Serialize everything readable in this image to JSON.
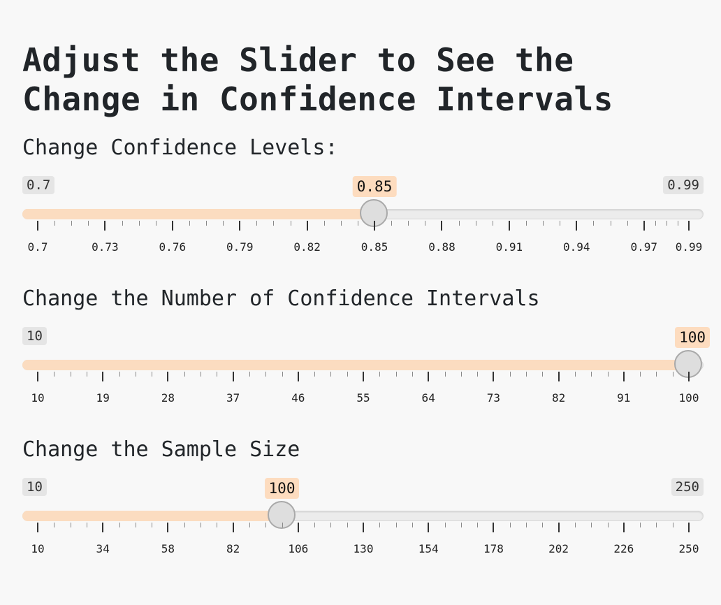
{
  "title": "Adjust the Slider to See the Change in Confidence Intervals",
  "sliders": [
    {
      "label": "Change Confidence Levels:",
      "min": 0.7,
      "max": 0.99,
      "value": 0.85,
      "min_label": "0.7",
      "max_label": "0.99",
      "value_label": "0.85",
      "ticks": [
        "0.7",
        "0.73",
        "0.76",
        "0.79",
        "0.82",
        "0.85",
        "0.88",
        "0.91",
        "0.94",
        "0.97",
        "0.99"
      ],
      "tick_values": [
        0.7,
        0.73,
        0.76,
        0.79,
        0.82,
        0.85,
        0.88,
        0.91,
        0.94,
        0.97,
        0.99
      ]
    },
    {
      "label": "Change the Number of Confidence Intervals",
      "min": 10,
      "max": 100,
      "value": 100,
      "min_label": "10",
      "max_label": "100",
      "value_label": "100",
      "ticks": [
        "10",
        "19",
        "28",
        "37",
        "46",
        "55",
        "64",
        "73",
        "82",
        "91",
        "100"
      ],
      "tick_values": [
        10,
        19,
        28,
        37,
        46,
        55,
        64,
        73,
        82,
        91,
        100
      ]
    },
    {
      "label": "Change the Sample Size",
      "min": 10,
      "max": 250,
      "value": 100,
      "min_label": "10",
      "max_label": "250",
      "value_label": "100",
      "ticks": [
        "10",
        "34",
        "58",
        "82",
        "106",
        "130",
        "154",
        "178",
        "202",
        "226",
        "250"
      ],
      "tick_values": [
        10,
        34,
        58,
        82,
        106,
        130,
        154,
        178,
        202,
        226,
        250
      ]
    }
  ],
  "colors": {
    "fill": "#fbdcc0",
    "badge": "#fddcbf",
    "track": "#ececec",
    "handle": "#dedede"
  }
}
